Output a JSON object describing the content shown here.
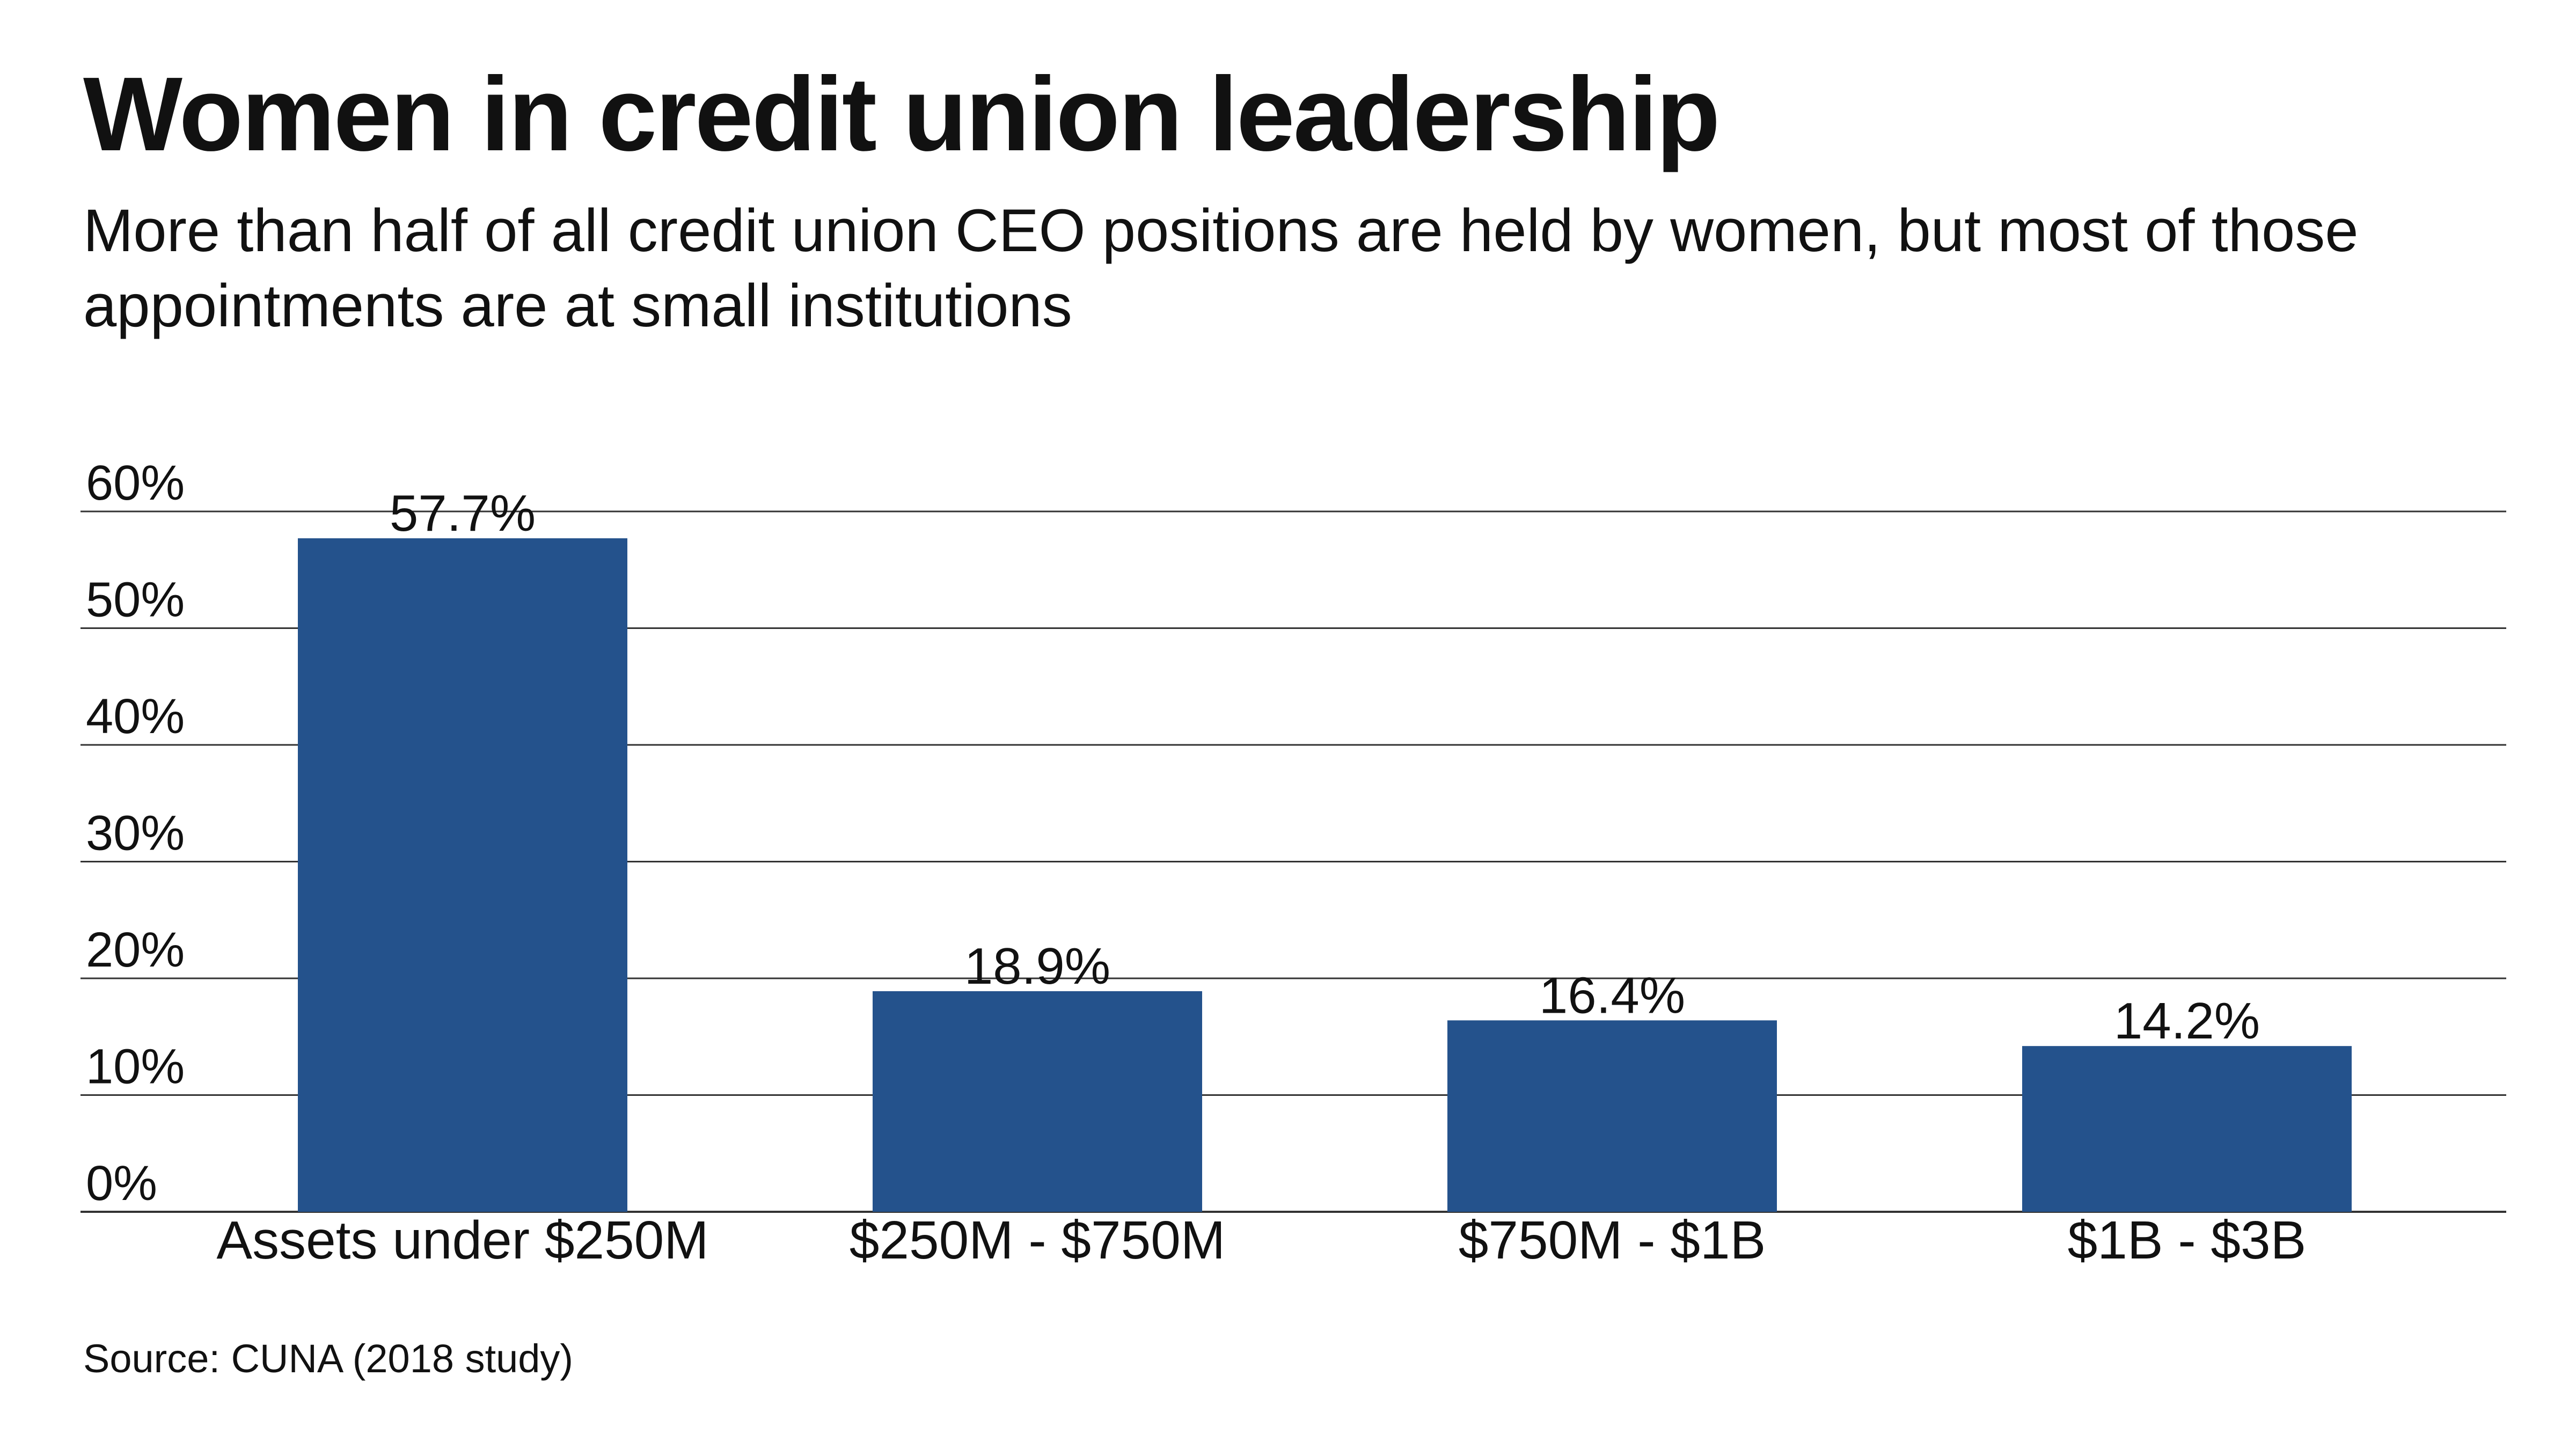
{
  "title": "Women in credit union leadership",
  "subtitle": "More than half of all credit union CEO positions are held by women, but most of those appointments are at small institutions",
  "source": "Source: CUNA (2018 study)",
  "colors": {
    "bar": "#24528c",
    "gridline": "#333333",
    "text": "#111111"
  },
  "chart_data": {
    "type": "bar",
    "title": "Women in credit union leadership",
    "subtitle": "More than half of all credit union CEO positions are held by women, but most of those appointments are at small institutions",
    "xlabel": "",
    "ylabel": "",
    "categories": [
      "Assets under $250M",
      "$250M - $750M",
      "$750M - $1B",
      "$1B - $3B"
    ],
    "values": [
      57.7,
      18.9,
      16.4,
      14.2
    ],
    "value_labels": [
      "57.7%",
      "18.9%",
      "16.4%",
      "14.2%"
    ],
    "ylim": [
      0,
      60
    ],
    "yticks": [
      0,
      10,
      20,
      30,
      40,
      50,
      60
    ],
    "ytick_labels": [
      "0%",
      "10%",
      "20%",
      "30%",
      "40%",
      "50%",
      "60%"
    ],
    "grid": true,
    "legend": "none"
  }
}
